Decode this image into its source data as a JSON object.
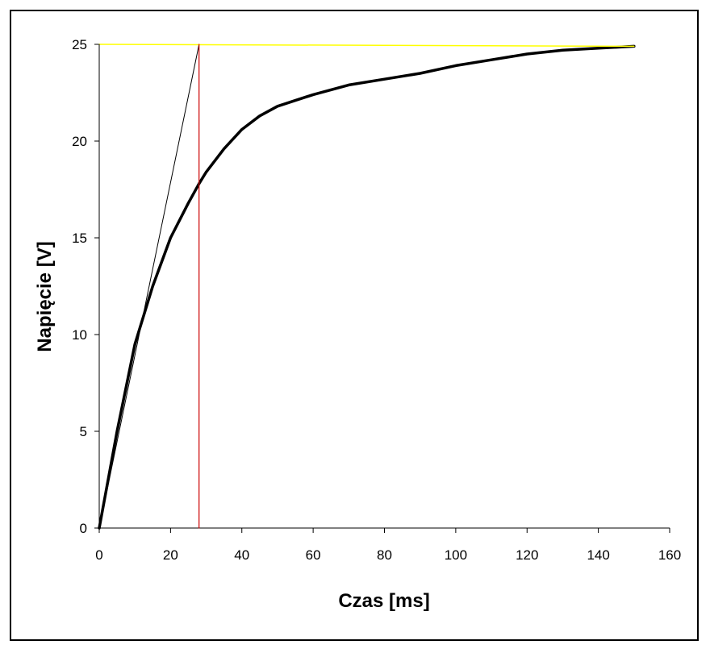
{
  "chart_data": {
    "type": "line",
    "title": "",
    "xlabel": "Czas [ms]",
    "ylabel": "Napięcie [V]",
    "xlim": [
      0,
      160
    ],
    "ylim": [
      0,
      25
    ],
    "xticks": [
      0,
      20,
      40,
      60,
      80,
      100,
      120,
      140,
      160
    ],
    "yticks": [
      0,
      5,
      10,
      15,
      20,
      25
    ],
    "grid": false,
    "legend": "none",
    "series": [
      {
        "role": "measured-curve",
        "color": "#000000",
        "x": [
          0,
          5,
          10,
          15,
          20,
          25,
          28,
          30,
          35,
          40,
          45,
          50,
          55,
          60,
          70,
          80,
          90,
          100,
          110,
          120,
          130,
          140,
          150
        ],
        "y": [
          0,
          5.0,
          9.5,
          12.5,
          15.0,
          16.8,
          17.8,
          18.4,
          19.6,
          20.6,
          21.3,
          21.8,
          22.1,
          22.4,
          22.9,
          23.2,
          23.5,
          23.9,
          24.2,
          24.5,
          24.7,
          24.8,
          24.9
        ]
      },
      {
        "role": "tangent-line",
        "color": "#000000",
        "x": [
          0,
          28
        ],
        "y": [
          0,
          25
        ]
      },
      {
        "role": "steady-state-line",
        "color": "#ffff00",
        "x": [
          0,
          150
        ],
        "y": [
          25,
          24.9
        ]
      },
      {
        "role": "time-constant-marker",
        "color": "#cc0000",
        "x": [
          28,
          28
        ],
        "y": [
          0,
          25
        ]
      },
      {
        "role": "left-reference-line",
        "color": "#000000",
        "x": [
          0,
          0
        ],
        "y": [
          0,
          25
        ]
      }
    ]
  }
}
